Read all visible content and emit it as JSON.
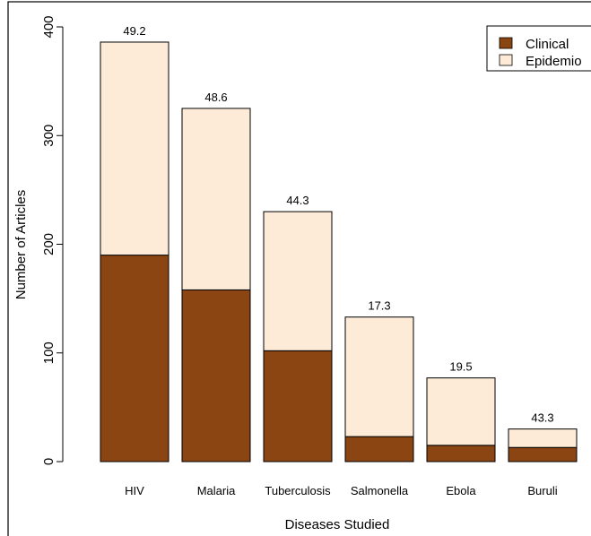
{
  "chart_data": {
    "type": "bar",
    "stacked": true,
    "title": "",
    "xlabel": "Diseases Studied",
    "ylabel": "Number of Articles",
    "ylim": [
      0,
      400
    ],
    "yticks": [
      0,
      100,
      200,
      300,
      400
    ],
    "categories": [
      "HIV",
      "Malaria",
      "Tuberculosis",
      "Salmonella",
      "Ebola",
      "Buruli"
    ],
    "series": [
      {
        "name": "Clinical",
        "color": "#8B4513",
        "values": [
          190,
          158,
          102,
          23,
          15,
          13
        ]
      },
      {
        "name": "Epidemio",
        "color": "#FDEBD7",
        "values": [
          196,
          167,
          128,
          110,
          62,
          17
        ]
      }
    ],
    "data_labels": [
      "49.2",
      "48.6",
      "44.3",
      "17.3",
      "19.5",
      "43.3"
    ],
    "legend_position": "top-right",
    "grid": false
  }
}
